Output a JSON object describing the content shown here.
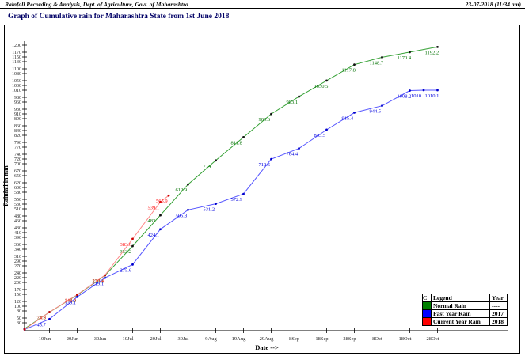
{
  "header": {
    "left": "Rainfall Recording & Analysis, Dept. of Agriculture, Govt. of Maharashtra",
    "right": "23-07-2018 (11:34 am)"
  },
  "title": "Graph of Cumulative rain for Maharashtra State from 1st June 2018",
  "chart_data": {
    "type": "line",
    "title": "Graph of Cumulative rain for Maharashtra State from 1st June 2018",
    "xlabel": "Date -->",
    "ylabel": "Rainfall in mm",
    "x_tick_labels": [
      "10Jun",
      "20Jun",
      "30Jun",
      "10Jul",
      "20Jul",
      "30Jul",
      "9Aug",
      "19Aug",
      "29Aug",
      "8Sep",
      "18Sep",
      "28Sep",
      "8Oct",
      "18Oct",
      "28Oct"
    ],
    "x_tick_days": [
      9,
      19,
      29,
      39,
      49,
      59,
      69,
      79,
      89,
      99,
      109,
      119,
      129,
      139,
      149
    ],
    "y_ticks": [
      30,
      50,
      80,
      100,
      120,
      150,
      170,
      200,
      220,
      240,
      270,
      290,
      310,
      340,
      360,
      390,
      410,
      430,
      460,
      480,
      510,
      530,
      550,
      580,
      600,
      620,
      650,
      670,
      700,
      720,
      740,
      770,
      790,
      820,
      840,
      860,
      890,
      910,
      930,
      960,
      980,
      1010,
      1030,
      1050,
      1080,
      1100,
      1130,
      1150,
      1170,
      1200
    ],
    "ylim": [
      30,
      1200
    ],
    "grid": false,
    "legend_position": "bottom-right",
    "series": [
      {
        "name": "Normal Rain",
        "year": "----",
        "line_color": "#33a033",
        "label_color": "#007000",
        "marker_color": "#111111",
        "swatch": "#008000",
        "points": [
          {
            "day": 0,
            "value": 5,
            "label": ""
          },
          {
            "day": 9,
            "value": 74.8,
            "label": "74.8"
          },
          {
            "day": 19,
            "value": 146.9,
            "label": "146.9"
          },
          {
            "day": 29,
            "value": 229.1,
            "label": "229.1"
          },
          {
            "day": 39,
            "value": 353.2,
            "label": "353.2"
          },
          {
            "day": 49,
            "value": 483,
            "label": "483"
          },
          {
            "day": 59,
            "value": 612.9,
            "label": "612.9"
          },
          {
            "day": 69,
            "value": 714,
            "label": "714"
          },
          {
            "day": 79,
            "value": 811.8,
            "label": "811.8"
          },
          {
            "day": 89,
            "value": 909.6,
            "label": "909.6"
          },
          {
            "day": 99,
            "value": 983.1,
            "label": "983.1"
          },
          {
            "day": 109,
            "value": 1050.5,
            "label": "1050.5"
          },
          {
            "day": 119,
            "value": 1117.8,
            "label": "1117.8"
          },
          {
            "day": 129,
            "value": 1148.7,
            "label": "1148.7"
          },
          {
            "day": 139,
            "value": 1170.4,
            "label": "1170.4"
          },
          {
            "day": 149,
            "value": 1192.2,
            "label": "1192.2"
          }
        ]
      },
      {
        "name": "Past Year Rain",
        "year": "2017",
        "line_color": "#5555ff",
        "label_color": "#0000dd",
        "marker_color": "#0000cc",
        "swatch": "#0000ff",
        "points": [
          {
            "day": 0,
            "value": 2,
            "label": ""
          },
          {
            "day": 9,
            "value": 45.7,
            "label": "45.7"
          },
          {
            "day": 19,
            "value": 139.1,
            "label": "139.1"
          },
          {
            "day": 29,
            "value": 219.1,
            "label": "219.1"
          },
          {
            "day": 39,
            "value": 275.6,
            "label": "275.6"
          },
          {
            "day": 49,
            "value": 424.1,
            "label": "424.1"
          },
          {
            "day": 59,
            "value": 505.8,
            "label": "505.8"
          },
          {
            "day": 69,
            "value": 531.2,
            "label": "531.2"
          },
          {
            "day": 79,
            "value": 572.9,
            "label": "572.9"
          },
          {
            "day": 89,
            "value": 719.5,
            "label": "719.5"
          },
          {
            "day": 99,
            "value": 764.4,
            "label": "764.4"
          },
          {
            "day": 109,
            "value": 843.5,
            "label": "843.5"
          },
          {
            "day": 119,
            "value": 915.4,
            "label": "915.4"
          },
          {
            "day": 129,
            "value": 944.5,
            "label": "944.5"
          },
          {
            "day": 139,
            "value": 1008.2,
            "label": "1008.2"
          },
          {
            "day": 144,
            "value": 1010,
            "label": "1010"
          },
          {
            "day": 149,
            "value": 1010.1,
            "label": "1010.1"
          }
        ]
      },
      {
        "name": "Current Year Rain",
        "year": "2018",
        "line_color": "#ff8888",
        "label_color": "#ff1111",
        "marker_color": "#cc0000",
        "swatch": "#ff0000",
        "points": [
          {
            "day": 0,
            "value": 2,
            "label": ""
          },
          {
            "day": 9,
            "value": 74.9,
            "label": "74.9"
          },
          {
            "day": 19,
            "value": 148.4,
            "label": "148.4"
          },
          {
            "day": 29,
            "value": 230.4,
            "label": "230.4"
          },
          {
            "day": 39,
            "value": 383.6,
            "label": "383.6"
          },
          {
            "day": 49,
            "value": 539.1,
            "label": "539.1"
          },
          {
            "day": 52,
            "value": 565.9,
            "label": "565.9"
          }
        ]
      }
    ],
    "legend": {
      "headers": [
        "C",
        "Legend",
        "Year"
      ],
      "rows": [
        [
          "Normal Rain",
          "----"
        ],
        [
          "Past Year Rain",
          "2017"
        ],
        [
          "Current Year Rain",
          "2018"
        ]
      ]
    }
  }
}
